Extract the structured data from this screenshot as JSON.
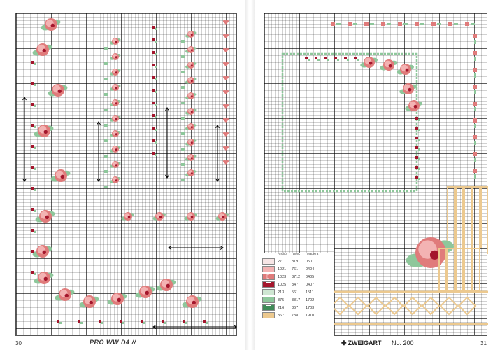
{
  "pages": {
    "left_number": "30",
    "right_number": "31"
  },
  "footer": {
    "publisher_mark": "PRO WW D4 //",
    "brand": "ZWEIGART",
    "issue": "No. 200"
  },
  "legend": {
    "headers": [
      "Anchor",
      "DMC",
      "Madeira"
    ],
    "rows": [
      {
        "anchor": "271",
        "dmc": "819",
        "madeira": "0501",
        "color": "#f7e6e6",
        "pattern": "dots"
      },
      {
        "anchor": "1021",
        "dmc": "761",
        "madeira": "0404",
        "color": "#f3b3b3",
        "pattern": "solid"
      },
      {
        "anchor": "1023",
        "dmc": "3712",
        "madeira": "0405",
        "color": "#e07b7b",
        "pattern": "cross"
      },
      {
        "anchor": "1025",
        "dmc": "347",
        "madeira": "0407",
        "color": "#a4162c",
        "pattern": "step"
      },
      {
        "anchor": "213",
        "dmc": "561",
        "madeira": "1511",
        "color": "#cfe6d2",
        "pattern": "solid"
      },
      {
        "anchor": "875",
        "dmc": "3817",
        "madeira": "1702",
        "color": "#8ec79b",
        "pattern": "solid"
      },
      {
        "anchor": "216",
        "dmc": "367",
        "madeira": "1703",
        "color": "#3f8a57",
        "pattern": "step"
      },
      {
        "anchor": "367",
        "dmc": "738",
        "madeira": "1910",
        "color": "#ecc98f",
        "pattern": "solid"
      }
    ]
  },
  "colors": {
    "rose_light": "#f3b3b3",
    "rose_mid": "#e07b7b",
    "rose_dark": "#a4162c",
    "green_light": "#cfe6d2",
    "green_mid": "#8ec79b",
    "green_dark": "#3f8a57",
    "tan": "#ecc98f"
  }
}
